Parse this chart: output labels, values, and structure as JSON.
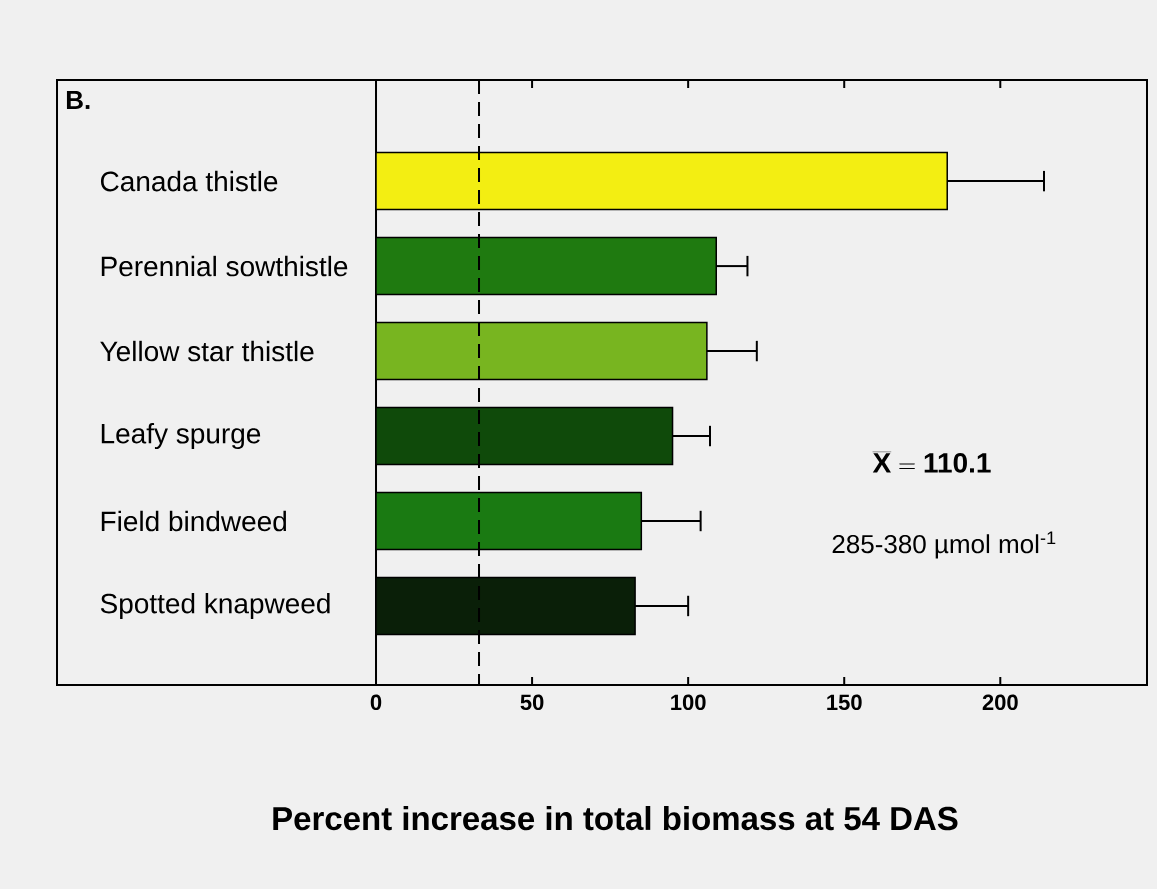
{
  "chart_data": {
    "type": "bar",
    "orientation": "horizontal",
    "xlabel": "Percent increase in total biomass at 54 DAS",
    "categories": [
      "Canada thistle",
      "Perennial sowthistle",
      "Yellow star thistle",
      "Leafy spurge",
      "Field bindweed",
      "Spotted knapweed"
    ],
    "values": [
      183,
      109,
      106,
      95,
      85,
      83
    ],
    "errors": [
      [
        183,
        214
      ],
      [
        109,
        119
      ],
      [
        106,
        122
      ],
      [
        95,
        107
      ],
      [
        85,
        104
      ],
      [
        83,
        100
      ]
    ],
    "colors": [
      "#f3ee12",
      "#1f7a10",
      "#78b520",
      "#0f4a0a",
      "#1a7a12",
      "#0a1f08"
    ],
    "xlim": [
      0,
      247
    ],
    "xticks": [
      0,
      50,
      100,
      150,
      200
    ],
    "ref_lines": [
      {
        "axis": "x",
        "value": 33,
        "line_style": "dashed",
        "color": "#000000"
      }
    ],
    "annotations": [
      "B.",
      "\\overline{\\textbf{X}} = \\textbf{110.1}",
      "285-380 µmol mol$^{-1}$"
    ]
  }
}
